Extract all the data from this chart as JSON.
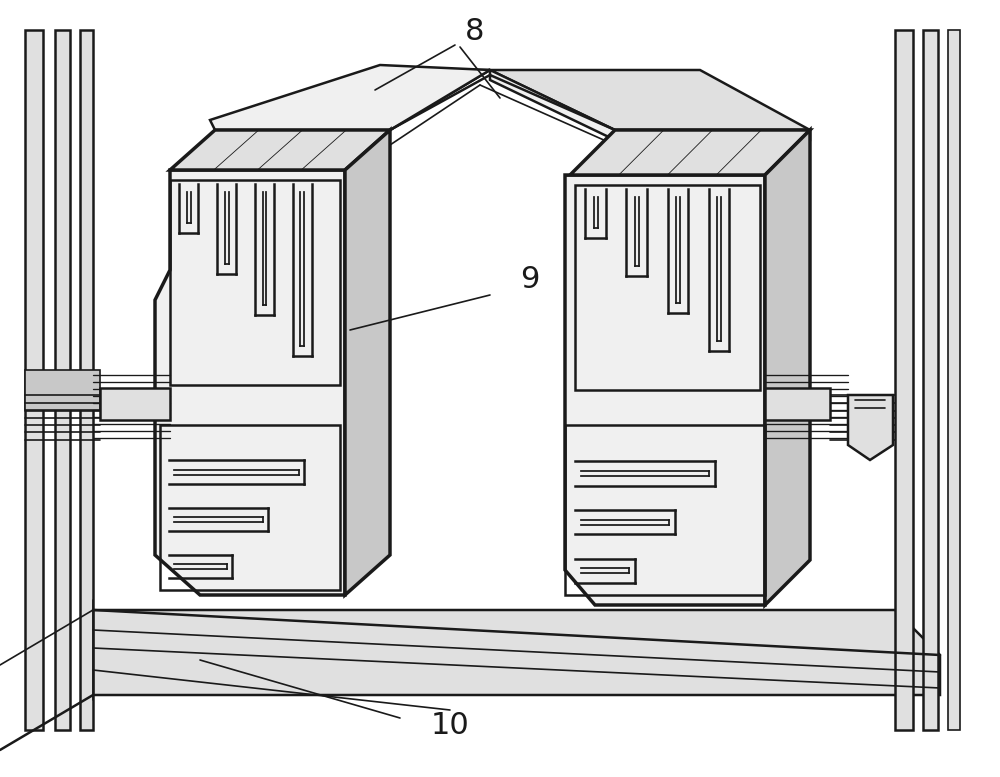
{
  "bg_color": "#ffffff",
  "line_color": "#1a1a1a",
  "fill_light": "#f0f0f0",
  "fill_mid": "#e0e0e0",
  "fill_dark": "#c8c8c8",
  "label_8": "8",
  "label_9": "9",
  "label_10": "10",
  "fontsize": 22,
  "lw_thin": 1.2,
  "lw_med": 1.8,
  "lw_thick": 2.5,
  "figsize": [
    10.0,
    7.77
  ]
}
